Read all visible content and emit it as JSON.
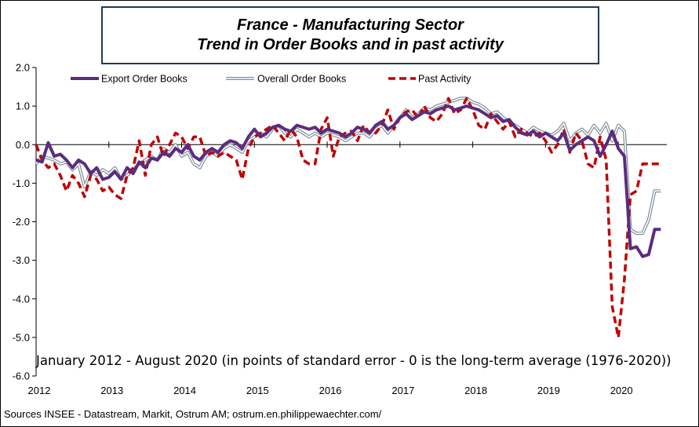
{
  "chart_data": {
    "type": "line",
    "title_lines": [
      "France - Manufacturing Sector",
      "Trend in Order Books and in past activity"
    ],
    "ylim": [
      -6.0,
      2.0
    ],
    "y_ticks": [
      "2.0",
      "1.0",
      "0.0",
      "-1.0",
      "-2.0",
      "-3.0",
      "-4.0",
      "-5.0",
      "-6.0"
    ],
    "y_tick_values": [
      2,
      1,
      0,
      -1,
      -2,
      -3,
      -4,
      -5,
      -6
    ],
    "x_ticks": [
      "2012",
      "2013",
      "2014",
      "2015",
      "2016",
      "2017",
      "2018",
      "2019",
      "2020"
    ],
    "x_tick_values": [
      2012,
      2013,
      2014,
      2015,
      2016,
      2017,
      2018,
      2019,
      2020
    ],
    "xlim": [
      2012,
      2020.6667
    ],
    "note": "January 2012 - August 2020 (in points of standard error - 0 is the long-term average (1976-2020))",
    "source": "Sources INSEE - Datastream, Markit, Ostrum AM;  ostrum.en.philippewaechter.com/",
    "grid": false,
    "legend_position": "top",
    "series": [
      {
        "name": "Export Order Books",
        "color": "#5b2c7e",
        "style": "solid-thick",
        "x": [
          2012.0,
          2012.0833,
          2012.1667,
          2012.25,
          2012.3333,
          2012.4167,
          2012.5,
          2012.5833,
          2012.6667,
          2012.75,
          2012.8333,
          2012.9167,
          2013.0,
          2013.0833,
          2013.1667,
          2013.25,
          2013.3333,
          2013.4167,
          2013.5,
          2013.5833,
          2013.6667,
          2013.75,
          2013.8333,
          2013.9167,
          2014.0,
          2014.0833,
          2014.1667,
          2014.25,
          2014.3333,
          2014.4167,
          2014.5,
          2014.5833,
          2014.6667,
          2014.75,
          2014.8333,
          2014.9167,
          2015.0,
          2015.0833,
          2015.1667,
          2015.25,
          2015.3333,
          2015.4167,
          2015.5,
          2015.5833,
          2015.6667,
          2015.75,
          2015.8333,
          2015.9167,
          2016.0,
          2016.0833,
          2016.1667,
          2016.25,
          2016.3333,
          2016.4167,
          2016.5,
          2016.5833,
          2016.6667,
          2016.75,
          2016.8333,
          2016.9167,
          2017.0,
          2017.0833,
          2017.1667,
          2017.25,
          2017.3333,
          2017.4167,
          2017.5,
          2017.5833,
          2017.6667,
          2017.75,
          2017.8333,
          2017.9167,
          2018.0,
          2018.0833,
          2018.1667,
          2018.25,
          2018.3333,
          2018.4167,
          2018.5,
          2018.5833,
          2018.6667,
          2018.75,
          2018.8333,
          2018.9167,
          2019.0,
          2019.0833,
          2019.1667,
          2019.25,
          2019.3333,
          2019.4167,
          2019.5,
          2019.5833,
          2019.6667,
          2019.75,
          2019.8333,
          2019.9167,
          2020.0,
          2020.0833,
          2020.1667,
          2020.25,
          2020.3333,
          2020.4167,
          2020.5,
          2020.5833
        ],
        "values": [
          -0.4,
          -0.45,
          0.05,
          -0.3,
          -0.25,
          -0.4,
          -0.6,
          -0.4,
          -0.5,
          -0.75,
          -0.6,
          -0.9,
          -0.85,
          -0.7,
          -0.9,
          -0.6,
          -0.75,
          -0.45,
          -0.6,
          -0.35,
          -0.4,
          -0.2,
          -0.3,
          -0.1,
          -0.2,
          0.0,
          -0.3,
          -0.4,
          -0.2,
          -0.1,
          -0.2,
          0.0,
          0.1,
          0.05,
          -0.1,
          0.2,
          0.4,
          0.2,
          0.3,
          0.45,
          0.5,
          0.4,
          0.35,
          0.5,
          0.45,
          0.4,
          0.45,
          0.3,
          0.4,
          0.35,
          0.3,
          0.2,
          0.3,
          0.45,
          0.4,
          0.3,
          0.5,
          0.6,
          0.4,
          0.5,
          0.7,
          0.8,
          0.65,
          0.75,
          0.85,
          0.8,
          0.9,
          0.95,
          1.0,
          0.9,
          0.95,
          1.0,
          0.95,
          0.9,
          0.8,
          0.7,
          0.75,
          0.6,
          0.65,
          0.45,
          0.3,
          0.25,
          0.35,
          0.2,
          0.3,
          0.2,
          0.1,
          0.3,
          -0.15,
          0.0,
          0.1,
          0.2,
          0.1,
          -0.3,
          0.0,
          0.35,
          -0.1,
          -0.3,
          -2.7,
          -2.65,
          -2.9,
          -2.85,
          -2.2,
          -2.2
        ]
      },
      {
        "name": "Overall Order Books",
        "color": "#7f8f99",
        "style": "double",
        "x": [
          2012.0,
          2012.0833,
          2012.1667,
          2012.25,
          2012.3333,
          2012.4167,
          2012.5,
          2012.5833,
          2012.6667,
          2012.75,
          2012.8333,
          2012.9167,
          2013.0,
          2013.0833,
          2013.1667,
          2013.25,
          2013.3333,
          2013.4167,
          2013.5,
          2013.5833,
          2013.6667,
          2013.75,
          2013.8333,
          2013.9167,
          2014.0,
          2014.0833,
          2014.1667,
          2014.25,
          2014.3333,
          2014.4167,
          2014.5,
          2014.5833,
          2014.6667,
          2014.75,
          2014.8333,
          2014.9167,
          2015.0,
          2015.0833,
          2015.1667,
          2015.25,
          2015.3333,
          2015.4167,
          2015.5,
          2015.5833,
          2015.6667,
          2015.75,
          2015.8333,
          2015.9167,
          2016.0,
          2016.0833,
          2016.1667,
          2016.25,
          2016.3333,
          2016.4167,
          2016.5,
          2016.5833,
          2016.6667,
          2016.75,
          2016.8333,
          2016.9167,
          2017.0,
          2017.0833,
          2017.1667,
          2017.25,
          2017.3333,
          2017.4167,
          2017.5,
          2017.5833,
          2017.6667,
          2017.75,
          2017.8333,
          2017.9167,
          2018.0,
          2018.0833,
          2018.1667,
          2018.25,
          2018.3333,
          2018.4167,
          2018.5,
          2018.5833,
          2018.6667,
          2018.75,
          2018.8333,
          2018.9167,
          2019.0,
          2019.0833,
          2019.1667,
          2019.25,
          2019.3333,
          2019.4167,
          2019.5,
          2019.5833,
          2019.6667,
          2019.75,
          2019.8333,
          2019.9167,
          2020.0,
          2020.0833,
          2020.1667,
          2020.25,
          2020.3333,
          2020.4167,
          2020.5,
          2020.5833
        ],
        "values": [
          -0.5,
          -0.3,
          -0.35,
          -0.4,
          -0.5,
          -0.45,
          -0.65,
          -0.5,
          -1.1,
          -0.7,
          -0.8,
          -0.65,
          -0.75,
          -0.6,
          -0.9,
          -0.8,
          -0.65,
          -0.5,
          -0.4,
          -0.3,
          -0.4,
          -0.1,
          -0.2,
          0.0,
          -0.3,
          -0.2,
          -0.5,
          -0.6,
          -0.3,
          -0.2,
          -0.3,
          -0.1,
          0.0,
          -0.1,
          -0.2,
          0.1,
          0.2,
          0.3,
          0.2,
          0.4,
          0.5,
          0.3,
          0.2,
          0.4,
          0.3,
          0.2,
          0.3,
          0.2,
          0.3,
          0.25,
          0.2,
          0.1,
          0.2,
          0.3,
          0.3,
          0.2,
          0.4,
          0.5,
          0.3,
          0.5,
          0.7,
          0.9,
          0.7,
          0.8,
          0.95,
          0.9,
          1.0,
          1.05,
          1.1,
          1.15,
          1.2,
          1.2,
          1.1,
          1.05,
          0.95,
          0.8,
          0.85,
          0.7,
          0.6,
          0.5,
          0.4,
          0.3,
          0.45,
          0.35,
          0.3,
          0.25,
          0.35,
          0.55,
          0.1,
          0.3,
          0.4,
          0.25,
          0.5,
          0.3,
          0.55,
          0.1,
          0.5,
          0.35,
          -2.2,
          -2.3,
          -2.3,
          -1.95,
          -1.2,
          -1.2
        ]
      },
      {
        "name": "Past Activity",
        "color": "#c00000",
        "style": "dashed",
        "x": [
          2012.0,
          2012.0833,
          2012.1667,
          2012.25,
          2012.3333,
          2012.4167,
          2012.5,
          2012.5833,
          2012.6667,
          2012.75,
          2012.8333,
          2012.9167,
          2013.0,
          2013.0833,
          2013.1667,
          2013.25,
          2013.3333,
          2013.4167,
          2013.5,
          2013.5833,
          2013.6667,
          2013.75,
          2013.8333,
          2013.9167,
          2014.0,
          2014.0833,
          2014.1667,
          2014.25,
          2014.3333,
          2014.4167,
          2014.5,
          2014.5833,
          2014.6667,
          2014.75,
          2014.8333,
          2014.9167,
          2015.0,
          2015.0833,
          2015.1667,
          2015.25,
          2015.3333,
          2015.4167,
          2015.5,
          2015.5833,
          2015.6667,
          2015.75,
          2015.8333,
          2015.9167,
          2016.0,
          2016.0833,
          2016.1667,
          2016.25,
          2016.3333,
          2016.4167,
          2016.5,
          2016.5833,
          2016.6667,
          2016.75,
          2016.8333,
          2016.9167,
          2017.0,
          2017.0833,
          2017.1667,
          2017.25,
          2017.3333,
          2017.4167,
          2017.5,
          2017.5833,
          2017.6667,
          2017.75,
          2017.8333,
          2017.9167,
          2018.0,
          2018.0833,
          2018.1667,
          2018.25,
          2018.3333,
          2018.4167,
          2018.5,
          2018.5833,
          2018.6667,
          2018.75,
          2018.8333,
          2018.9167,
          2019.0,
          2019.0833,
          2019.1667,
          2019.25,
          2019.3333,
          2019.4167,
          2019.5,
          2019.5833,
          2019.6667,
          2019.75,
          2019.8333,
          2019.9167,
          2020.0,
          2020.0833,
          2020.1667,
          2020.25,
          2020.3333,
          2020.4167,
          2020.5,
          2020.5833
        ],
        "values": [
          0.0,
          -0.4,
          -0.6,
          -0.5,
          -0.8,
          -1.2,
          -0.8,
          -1.0,
          -1.35,
          -0.8,
          -0.9,
          -1.2,
          -1.1,
          -1.3,
          -1.4,
          -0.8,
          -0.6,
          0.1,
          -0.8,
          0.0,
          0.2,
          -0.3,
          0.0,
          0.3,
          0.2,
          -0.1,
          0.2,
          0.2,
          -0.3,
          -0.2,
          -0.3,
          -0.2,
          -0.3,
          -0.4,
          -0.9,
          -0.1,
          0.2,
          0.3,
          0.4,
          0.5,
          0.3,
          0.1,
          0.4,
          0.2,
          -0.4,
          -0.5,
          -0.5,
          0.4,
          0.7,
          -0.3,
          0.2,
          0.3,
          0.35,
          0.1,
          0.5,
          0.3,
          0.3,
          0.5,
          0.9,
          0.4,
          0.7,
          0.85,
          0.9,
          0.7,
          1.0,
          0.7,
          0.6,
          0.8,
          1.2,
          0.8,
          0.9,
          1.2,
          0.9,
          0.5,
          0.4,
          0.8,
          0.6,
          0.4,
          0.6,
          0.2,
          0.4,
          0.3,
          0.2,
          0.3,
          0.1,
          -0.2,
          0.0,
          0.4,
          -0.2,
          0.3,
          0.1,
          -0.5,
          -0.6,
          0.2,
          -0.4,
          -4.2,
          -5.0,
          -3.5,
          -1.3,
          -1.2,
          -0.5,
          -0.5,
          -0.5,
          -0.5
        ]
      }
    ]
  }
}
